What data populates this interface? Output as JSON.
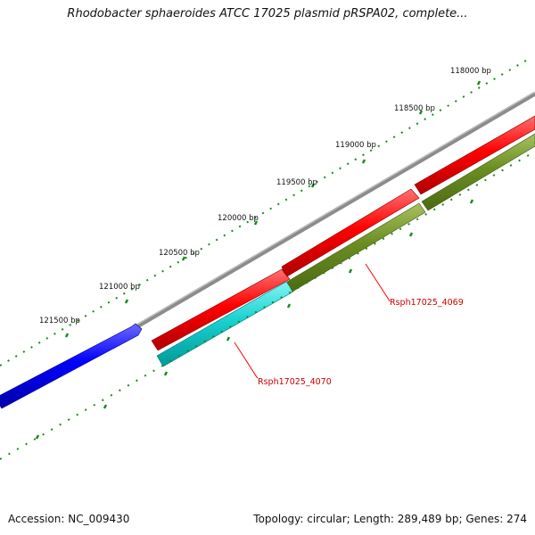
{
  "title": "Rhodobacter sphaeroides ATCC 17025 plasmid pRSPA02, complete...",
  "ruler_labels": [
    "118000 bp",
    "118500 bp",
    "119000 bp",
    "119500 bp",
    "120000 bp",
    "120500 bp",
    "121000 bp",
    "121500 bp"
  ],
  "genes": [
    {
      "id": "Rsph17025_4069",
      "color": "#ff0000"
    },
    {
      "id": "Rsph17025_4070",
      "color": "#00cccc"
    }
  ],
  "footer": {
    "accession": "Accession: NC_009430",
    "summary": "Topology: circular; Length: 289,489 bp; Genes: 274"
  },
  "colors": {
    "backbone": "#8c8c8c",
    "tick": "#1a8a1a",
    "blue_feature": "#0000ff",
    "olive_feature": "#6b8e23",
    "label_line": "#ff0000"
  }
}
